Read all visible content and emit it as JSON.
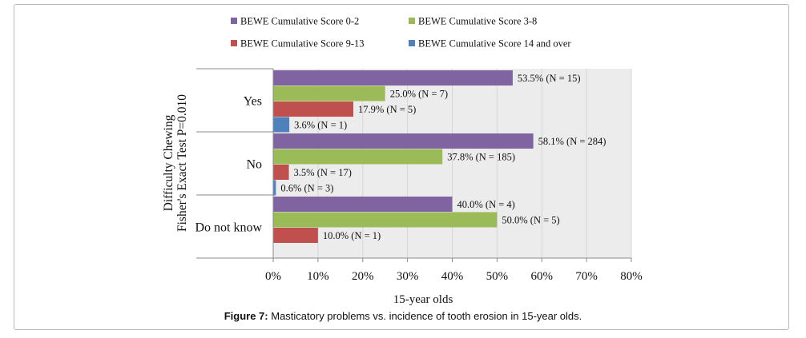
{
  "chart_data": {
    "type": "bar",
    "orientation": "horizontal",
    "title": "",
    "xlabel": "15-year olds",
    "ylabel_lines": [
      "Difficulty Chewing",
      "Fisher's Exact Test P=0.010"
    ],
    "xlim": [
      0,
      80
    ],
    "xticks": [
      "0%",
      "10%",
      "20%",
      "30%",
      "40%",
      "50%",
      "60%",
      "70%",
      "80%"
    ],
    "grid": true,
    "legend_position": "top",
    "categories": [
      "Yes",
      "No",
      "Do not know"
    ],
    "series": [
      {
        "name": "BEWE Cumulative Score 0-2",
        "color": "#8064a2",
        "values": [
          53.5,
          58.1,
          40.0
        ],
        "labels": [
          "53.5% (N = 15)",
          "58.1% (N = 284)",
          "40.0% (N = 4)"
        ]
      },
      {
        "name": "BEWE Cumulative Score 3-8",
        "color": "#9bbb59",
        "values": [
          25.0,
          37.8,
          50.0
        ],
        "labels": [
          "25.0% (N = 7)",
          "37.8% (N = 185)",
          "50.0% (N = 5)"
        ]
      },
      {
        "name": "BEWE Cumulative Score 9-13",
        "color": "#c0504d",
        "values": [
          17.9,
          3.5,
          10.0
        ],
        "labels": [
          "17.9% (N = 5)",
          "3.5% (N = 17)",
          "10.0% (N = 1)"
        ]
      },
      {
        "name": "BEWE Cumulative Score 14 and over",
        "color": "#4f81bd",
        "values": [
          3.6,
          0.6,
          null
        ],
        "labels": [
          "3.6% (N = 1)",
          "0.6% (N = 3)",
          ""
        ]
      }
    ]
  },
  "caption": {
    "label": "Figure 7:",
    "text": " Masticatory problems vs. incidence of tooth erosion in 15-year olds."
  }
}
